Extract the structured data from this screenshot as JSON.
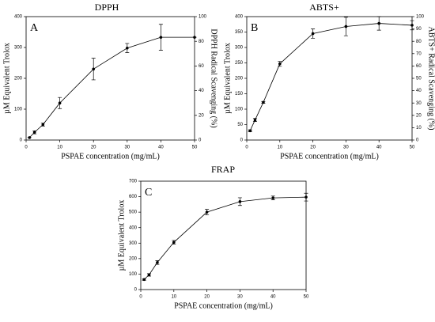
{
  "chart_data": [
    {
      "type": "line",
      "title": "DPPH",
      "panel_label": "A",
      "x_label": "PSPAE concentration (mg/mL)",
      "y_label": "µM Equivalent Trolox",
      "y2_label": "DPPH Radical Scavenging (%)",
      "x": [
        1,
        2.5,
        5,
        10,
        20,
        30,
        40,
        50
      ],
      "series": [
        {
          "color": "#000000",
          "values": [
            8,
            25,
            50,
            120,
            230,
            298,
            333,
            333
          ],
          "errors": [
            0,
            5,
            5,
            18,
            35,
            15,
            42,
            0
          ]
        }
      ],
      "xlim": [
        0,
        50
      ],
      "xticks": [
        0,
        10,
        20,
        30,
        40,
        50
      ],
      "ylim": [
        0,
        400
      ],
      "yticks": [
        0,
        100,
        200,
        300,
        400
      ],
      "y2lim": [
        0,
        100
      ],
      "y2ticks": [
        0,
        20,
        40,
        60,
        80,
        100
      ]
    },
    {
      "type": "line",
      "title": "ABTS+",
      "panel_label": "B",
      "x_label": "PSPAE concentration (mg/mL)",
      "y_label": "µM Equivalent Trolox",
      "y2_label": "ABTS+ Radical Scavenging (%)",
      "x": [
        1,
        2.5,
        5,
        10,
        20,
        30,
        40,
        50
      ],
      "series": [
        {
          "color": "#000000",
          "values": [
            30,
            65,
            122,
            247,
            345,
            368,
            378,
            372
          ],
          "errors": [
            3,
            5,
            3,
            8,
            15,
            30,
            22,
            15
          ]
        }
      ],
      "xlim": [
        0,
        50
      ],
      "xticks": [
        0,
        10,
        20,
        30,
        40,
        50
      ],
      "ylim": [
        0,
        400
      ],
      "yticks": [
        0,
        50,
        100,
        150,
        200,
        250,
        300,
        350,
        400
      ],
      "y2lim": [
        0,
        100
      ],
      "y2ticks": [
        0,
        10,
        20,
        30,
        40,
        50,
        60,
        70,
        80,
        90,
        100
      ]
    },
    {
      "type": "line",
      "title": "FRAP",
      "panel_label": "C",
      "x_label": "PSPAE concentration (mg/mL)",
      "y_label": "µM Equivalent Trolox",
      "x": [
        1,
        2.5,
        5,
        10,
        20,
        30,
        40,
        50
      ],
      "series": [
        {
          "color": "#000000",
          "values": [
            65,
            95,
            175,
            305,
            500,
            568,
            592,
            597
          ],
          "errors": [
            5,
            8,
            12,
            12,
            18,
            25,
            12,
            25
          ]
        }
      ],
      "xlim": [
        0,
        50
      ],
      "xticks": [
        0,
        10,
        20,
        30,
        40,
        50
      ],
      "ylim": [
        0,
        700
      ],
      "yticks": [
        0,
        100,
        200,
        300,
        400,
        500,
        600,
        700
      ]
    }
  ]
}
